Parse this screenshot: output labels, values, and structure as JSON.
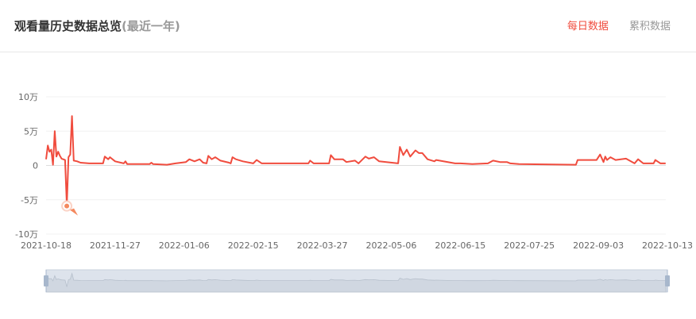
{
  "header": {
    "title": "观看量历史数据总览",
    "subtitle": "(最近一年)",
    "tabs": [
      {
        "label": "每日数据",
        "active": true
      },
      {
        "label": "累积数据",
        "active": false
      }
    ]
  },
  "colors": {
    "line": "#f04c3e",
    "accent": "#f04c3e",
    "marker": "#f4895f",
    "slider_fill": "#d3dae6"
  },
  "chart_data": {
    "type": "line",
    "title": "",
    "xlabel": "",
    "ylabel": "",
    "y_unit": "万",
    "ylim": [
      -10,
      10
    ],
    "yticks": [
      "10万",
      "5万",
      "0",
      "-5万",
      "-10万"
    ],
    "ytick_values": [
      10,
      5,
      0,
      -5,
      -10
    ],
    "xlim": [
      "2021-10-18",
      "2022-10-13"
    ],
    "xticks": [
      "2021-10-18",
      "2021-11-27",
      "2022-01-06",
      "2022-02-15",
      "2022-03-27",
      "2022-05-06",
      "2022-06-15",
      "2022-07-25",
      "2022-09-03",
      "2022-10-13"
    ],
    "grid": true,
    "highlight": {
      "date": "2021-10-30",
      "value": -5.8
    },
    "data_zoom": {
      "start_percent": 0,
      "end_percent": 100
    },
    "series": [
      {
        "points": [
          [
            "2021-10-18",
            0.9
          ],
          [
            "2021-10-19",
            2.9
          ],
          [
            "2021-10-20",
            2.0
          ],
          [
            "2021-10-21",
            2.3
          ],
          [
            "2021-10-22",
            0.1
          ],
          [
            "2021-10-23",
            5.0
          ],
          [
            "2021-10-24",
            1.3
          ],
          [
            "2021-10-25",
            2.0
          ],
          [
            "2021-10-26",
            1.4
          ],
          [
            "2021-10-27",
            1.0
          ],
          [
            "2021-10-29",
            0.8
          ],
          [
            "2021-10-30",
            -5.8
          ],
          [
            "2021-10-31",
            1.2
          ],
          [
            "2021-11-01",
            1.6
          ],
          [
            "2021-11-02",
            7.2
          ],
          [
            "2021-11-03",
            0.7
          ],
          [
            "2021-11-05",
            0.6
          ],
          [
            "2021-11-07",
            0.4
          ],
          [
            "2021-11-12",
            0.3
          ],
          [
            "2021-11-20",
            0.3
          ],
          [
            "2021-11-21",
            1.3
          ],
          [
            "2021-11-23",
            0.9
          ],
          [
            "2021-11-24",
            1.2
          ],
          [
            "2021-11-27",
            0.6
          ],
          [
            "2021-12-02",
            0.3
          ],
          [
            "2021-12-03",
            0.6
          ],
          [
            "2021-12-04",
            0.2
          ],
          [
            "2021-12-17",
            0.2
          ],
          [
            "2021-12-18",
            0.4
          ],
          [
            "2021-12-19",
            0.2
          ],
          [
            "2021-12-27",
            0.1
          ],
          [
            "2022-01-01",
            0.3
          ],
          [
            "2022-01-07",
            0.5
          ],
          [
            "2022-01-09",
            0.9
          ],
          [
            "2022-01-12",
            0.6
          ],
          [
            "2022-01-15",
            0.9
          ],
          [
            "2022-01-17",
            0.4
          ],
          [
            "2022-01-19",
            0.3
          ],
          [
            "2022-01-20",
            1.4
          ],
          [
            "2022-01-22",
            0.9
          ],
          [
            "2022-01-24",
            1.2
          ],
          [
            "2022-01-27",
            0.7
          ],
          [
            "2022-02-01",
            0.4
          ],
          [
            "2022-02-02",
            0.3
          ],
          [
            "2022-02-03",
            1.2
          ],
          [
            "2022-02-05",
            0.9
          ],
          [
            "2022-02-09",
            0.6
          ],
          [
            "2022-02-15",
            0.3
          ],
          [
            "2022-02-17",
            0.8
          ],
          [
            "2022-02-20",
            0.3
          ],
          [
            "2022-03-19",
            0.3
          ],
          [
            "2022-03-20",
            0.7
          ],
          [
            "2022-03-22",
            0.3
          ],
          [
            "2022-03-31",
            0.3
          ],
          [
            "2022-04-01",
            1.5
          ],
          [
            "2022-04-03",
            0.9
          ],
          [
            "2022-04-08",
            0.9
          ],
          [
            "2022-04-10",
            0.5
          ],
          [
            "2022-04-15",
            0.7
          ],
          [
            "2022-04-17",
            0.3
          ],
          [
            "2022-04-21",
            1.3
          ],
          [
            "2022-04-23",
            1.0
          ],
          [
            "2022-04-26",
            1.2
          ],
          [
            "2022-04-29",
            0.6
          ],
          [
            "2022-05-10",
            0.3
          ],
          [
            "2022-05-11",
            2.7
          ],
          [
            "2022-05-13",
            1.5
          ],
          [
            "2022-05-15",
            2.3
          ],
          [
            "2022-05-17",
            1.3
          ],
          [
            "2022-05-20",
            2.2
          ],
          [
            "2022-05-22",
            1.8
          ],
          [
            "2022-05-24",
            1.8
          ],
          [
            "2022-05-27",
            0.9
          ],
          [
            "2022-05-31",
            0.6
          ],
          [
            "2022-06-01",
            0.8
          ],
          [
            "2022-06-12",
            0.3
          ],
          [
            "2022-06-15",
            0.3
          ],
          [
            "2022-06-22",
            0.2
          ],
          [
            "2022-07-01",
            0.3
          ],
          [
            "2022-07-04",
            0.7
          ],
          [
            "2022-07-08",
            0.5
          ],
          [
            "2022-07-12",
            0.5
          ],
          [
            "2022-07-14",
            0.3
          ],
          [
            "2022-07-19",
            0.2
          ],
          [
            "2022-08-21",
            0.1
          ],
          [
            "2022-08-22",
            0.8
          ],
          [
            "2022-09-02",
            0.8
          ],
          [
            "2022-09-04",
            1.6
          ],
          [
            "2022-09-06",
            0.5
          ],
          [
            "2022-09-07",
            1.3
          ],
          [
            "2022-09-08",
            0.8
          ],
          [
            "2022-09-10",
            1.2
          ],
          [
            "2022-09-13",
            0.8
          ],
          [
            "2022-09-19",
            1.0
          ],
          [
            "2022-09-24",
            0.3
          ],
          [
            "2022-09-26",
            0.9
          ],
          [
            "2022-09-29",
            0.3
          ],
          [
            "2022-10-05",
            0.3
          ],
          [
            "2022-10-06",
            0.8
          ],
          [
            "2022-10-09",
            0.3
          ],
          [
            "2022-10-12",
            0.3
          ]
        ]
      }
    ]
  }
}
